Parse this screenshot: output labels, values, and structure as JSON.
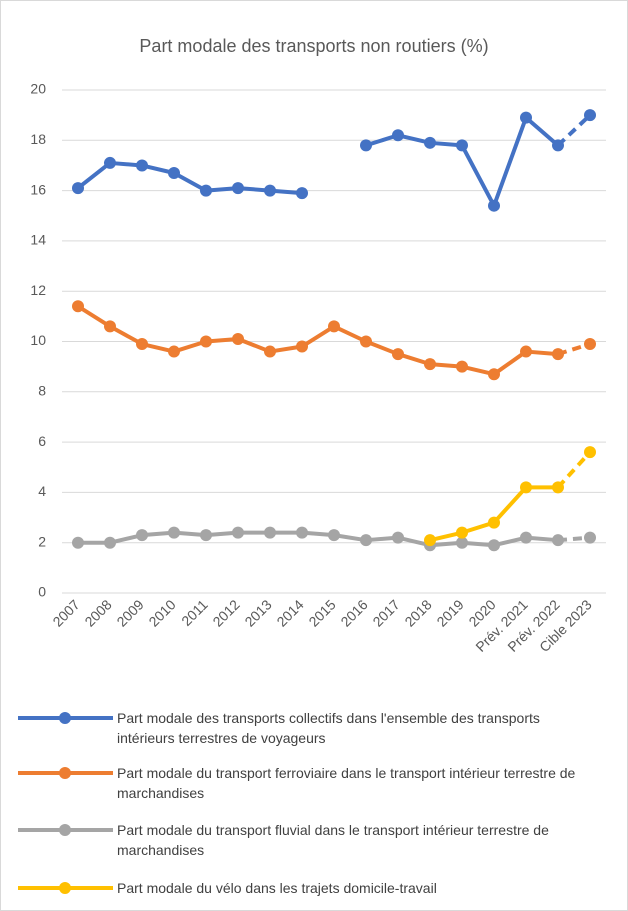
{
  "chart_data": {
    "type": "line",
    "title": "Part modale des transports non routiers (%)",
    "categories": [
      "2007",
      "2008",
      "2009",
      "2010",
      "2011",
      "2012",
      "2013",
      "2014",
      "2015",
      "2016",
      "2017",
      "2018",
      "2019",
      "2020",
      "Prév. 2021",
      "Prév. 2022",
      "Cible 2023"
    ],
    "series": [
      {
        "name": "Part modale des transports collectifs dans l'ensemble des transports intérieurs terrestres de voyageurs",
        "color": "#4472c4",
        "values": [
          16.1,
          17.1,
          17.0,
          16.7,
          16.0,
          16.1,
          16.0,
          15.9,
          null,
          17.8,
          18.2,
          17.9,
          17.8,
          15.4,
          18.9,
          17.8,
          19.0
        ]
      },
      {
        "name": "Part modale du transport ferroviaire dans le transport intérieur terrestre de marchandises",
        "color": "#ed7d31",
        "values": [
          11.4,
          10.6,
          9.9,
          9.6,
          10.0,
          10.1,
          9.6,
          9.8,
          10.6,
          10.0,
          9.5,
          9.1,
          9.0,
          8.7,
          9.6,
          9.5,
          9.9
        ]
      },
      {
        "name": "Part modale du transport fluvial dans le transport intérieur terrestre de marchandises",
        "color": "#a5a5a5",
        "values": [
          2.0,
          2.0,
          2.3,
          2.4,
          2.3,
          2.4,
          2.4,
          2.4,
          2.3,
          2.1,
          2.2,
          1.9,
          2.0,
          1.9,
          2.2,
          2.1,
          2.2
        ]
      },
      {
        "name": "Part modale du vélo dans les trajets domicile-travail",
        "color": "#ffc000",
        "values": [
          null,
          null,
          null,
          null,
          null,
          null,
          null,
          null,
          null,
          null,
          null,
          2.1,
          2.4,
          2.8,
          4.2,
          4.2,
          5.6
        ]
      }
    ],
    "ylim": [
      0,
      20
    ],
    "yticks": [
      0,
      2,
      4,
      6,
      8,
      10,
      12,
      14,
      16,
      18,
      20
    ],
    "grid": true,
    "legend": "bottom"
  }
}
